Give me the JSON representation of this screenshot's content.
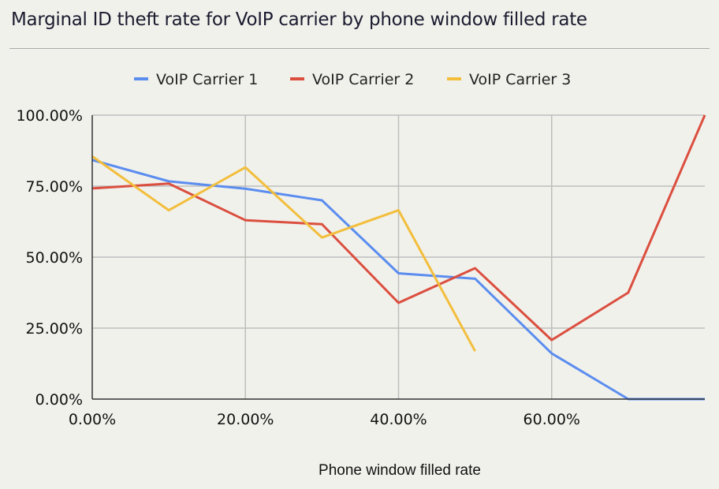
{
  "chart_data": {
    "type": "line",
    "title": "Marginal ID theft rate for VoIP carrier by phone window filled rate",
    "xlabel": "Phone window filled rate",
    "ylabel": "",
    "xlim": [
      0,
      80
    ],
    "ylim": [
      0,
      100
    ],
    "x_ticks": [
      "0.00%",
      "20.00%",
      "40.00%",
      "60.00%"
    ],
    "x_tick_values": [
      0,
      20,
      40,
      60
    ],
    "y_ticks": [
      "0.00%",
      "25.00%",
      "50.00%",
      "75.00%",
      "100.00%"
    ],
    "y_tick_values": [
      0,
      25,
      50,
      75,
      100
    ],
    "grid": true,
    "legend_position": "top",
    "series": [
      {
        "name": "VoIP Carrier 1",
        "color": "#5b8def",
        "x": [
          0,
          10,
          20,
          30,
          40,
          50,
          60,
          70,
          80
        ],
        "values": [
          84.2,
          76.7,
          74.1,
          70.0,
          44.3,
          42.4,
          16.1,
          0,
          0
        ]
      },
      {
        "name": "VoIP Carrier 2",
        "color": "#db4f3f",
        "x": [
          0,
          10,
          20,
          30,
          40,
          50,
          60,
          70,
          80
        ],
        "values": [
          74.2,
          75.9,
          63.0,
          61.6,
          33.9,
          46.1,
          20.8,
          37.5,
          100
        ]
      },
      {
        "name": "VoIP Carrier 3",
        "color": "#f2be3c",
        "x": [
          0,
          10,
          20,
          30,
          40,
          50
        ],
        "values": [
          85.5,
          66.5,
          81.6,
          56.9,
          66.5,
          16.9
        ]
      }
    ]
  }
}
